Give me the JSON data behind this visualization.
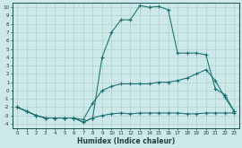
{
  "xlabel": "Humidex (Indice chaleur)",
  "bg_color": "#cce8e8",
  "grid_color": "#b0d0d0",
  "line_color": "#1a7070",
  "xlim": [
    -0.5,
    23.5
  ],
  "ylim": [
    -4.5,
    10.5
  ],
  "yticks": [
    10,
    9,
    8,
    7,
    6,
    5,
    4,
    3,
    2,
    1,
    0,
    -1,
    -2,
    -3,
    -4
  ],
  "xticks": [
    0,
    1,
    2,
    3,
    4,
    5,
    6,
    7,
    8,
    9,
    10,
    11,
    12,
    13,
    14,
    15,
    16,
    17,
    18,
    19,
    20,
    21,
    22,
    23
  ],
  "curve1_x": [
    0,
    1,
    2,
    3,
    4,
    5,
    6,
    7,
    8,
    9,
    10,
    11,
    12,
    13,
    14,
    15,
    16,
    17,
    18,
    19,
    20,
    21,
    22,
    23
  ],
  "curve1_y": [
    -2,
    -2.5,
    -3,
    -3.3,
    -3.3,
    -3.3,
    -3.3,
    -3.8,
    -3.3,
    -3.0,
    -2.8,
    -2.7,
    -2.8,
    -2.7,
    -2.7,
    -2.7,
    -2.7,
    -2.7,
    -2.8,
    -2.8,
    -2.7,
    -2.7,
    -2.7,
    -2.7
  ],
  "curve2_x": [
    0,
    1,
    2,
    3,
    4,
    5,
    6,
    7,
    8,
    9,
    10,
    11,
    12,
    13,
    14,
    15,
    16,
    17,
    18,
    19,
    20,
    21,
    22,
    23
  ],
  "curve2_y": [
    -2,
    -2.5,
    -3,
    -3.3,
    -3.3,
    -3.3,
    -3.3,
    -3.5,
    -1.5,
    0.0,
    0.5,
    0.8,
    0.8,
    0.8,
    0.8,
    1.0,
    1.0,
    1.2,
    1.5,
    2.0,
    2.5,
    1.2,
    -0.8,
    -2.5
  ],
  "curve3_x": [
    0,
    1,
    2,
    3,
    4,
    5,
    6,
    7,
    8,
    9,
    10,
    11,
    12,
    13,
    14,
    15,
    16,
    17,
    18,
    19,
    20,
    21,
    22,
    23
  ],
  "curve3_y": [
    -2,
    -2.5,
    -3,
    -3.3,
    -3.3,
    -3.3,
    -3.3,
    -3.8,
    -3.3,
    4.0,
    7.0,
    8.5,
    8.5,
    10.2,
    10.0,
    10.1,
    9.7,
    4.5,
    4.5,
    4.5,
    4.3,
    0.2,
    -0.5,
    -2.5
  ]
}
